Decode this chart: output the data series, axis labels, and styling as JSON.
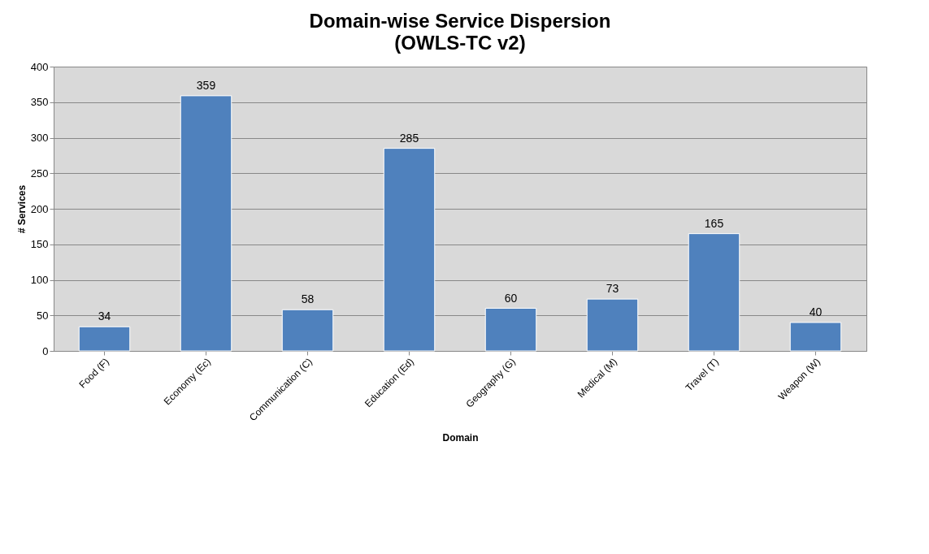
{
  "chart_data": {
    "type": "bar",
    "title": "Domain-wise Service Dispersion",
    "subtitle": "(OWLS-TC v2)",
    "xlabel": "Domain",
    "ylabel": "# Services",
    "categories": [
      "Food (F)",
      "Economy (Ec)",
      "Communication (C)",
      "Education (Ed)",
      "Geography (G)",
      "Medical (M)",
      "Travel (T)",
      "Weapon (W)"
    ],
    "values": [
      34,
      359,
      58,
      285,
      60,
      73,
      165,
      40
    ],
    "color": "#4f81bd",
    "ylim": [
      0,
      400
    ],
    "yticks": [
      0,
      50,
      100,
      150,
      200,
      250,
      300,
      350,
      400
    ],
    "grid": "y",
    "data_labels": true
  }
}
